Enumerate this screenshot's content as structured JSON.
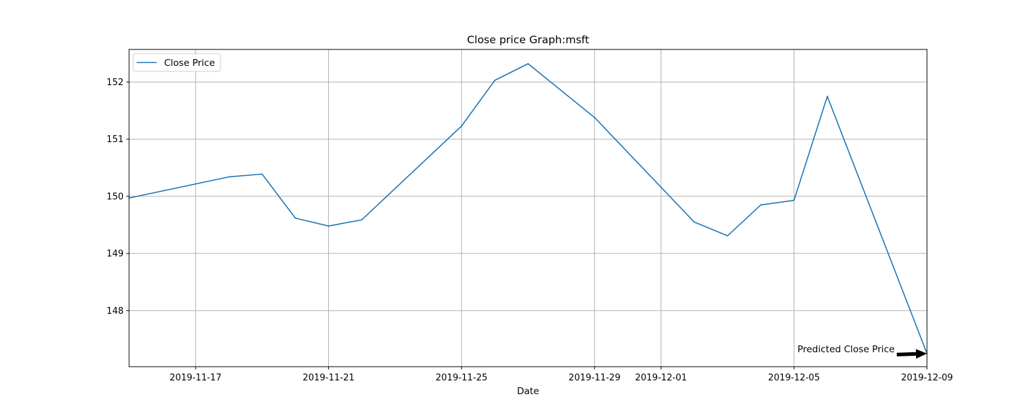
{
  "chart_data": {
    "type": "line",
    "title": "Close price Graph:msft",
    "xlabel": "Date",
    "ylabel": "",
    "xlim": [
      "2019-11-15",
      "2019-12-09"
    ],
    "ylim": [
      147.02,
      152.57
    ],
    "x_ticks": [
      "2019-11-17",
      "2019-11-21",
      "2019-11-25",
      "2019-11-29",
      "2019-12-01",
      "2019-12-05",
      "2019-12-09"
    ],
    "y_ticks": [
      148,
      149,
      150,
      151,
      152
    ],
    "grid": true,
    "legend": {
      "position": "top-left",
      "entries": [
        "Close Price"
      ]
    },
    "series": [
      {
        "name": "Close Price",
        "color": "#1f77b4",
        "points": [
          {
            "x": "2019-11-15",
            "y": 149.97
          },
          {
            "x": "2019-11-18",
            "y": 150.34
          },
          {
            "x": "2019-11-19",
            "y": 150.39
          },
          {
            "x": "2019-11-20",
            "y": 149.62
          },
          {
            "x": "2019-11-21",
            "y": 149.48
          },
          {
            "x": "2019-11-22",
            "y": 149.59
          },
          {
            "x": "2019-11-25",
            "y": 151.23
          },
          {
            "x": "2019-11-26",
            "y": 152.03
          },
          {
            "x": "2019-11-27",
            "y": 152.32
          },
          {
            "x": "2019-11-29",
            "y": 151.38
          },
          {
            "x": "2019-12-02",
            "y": 149.55
          },
          {
            "x": "2019-12-03",
            "y": 149.31
          },
          {
            "x": "2019-12-04",
            "y": 149.85
          },
          {
            "x": "2019-12-05",
            "y": 149.93
          },
          {
            "x": "2019-12-06",
            "y": 151.75
          },
          {
            "x": "2019-12-09",
            "y": 147.25
          }
        ]
      }
    ],
    "annotations": [
      {
        "text": "Predicted Close Price",
        "x": "2019-12-09",
        "y": 147.25,
        "arrow": true
      }
    ]
  }
}
